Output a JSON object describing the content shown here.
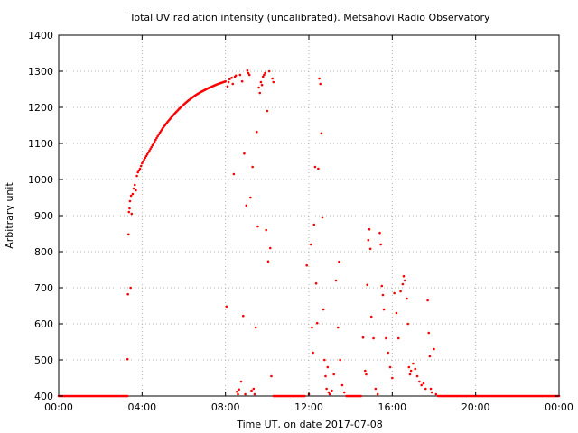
{
  "chart_data": {
    "type": "scatter",
    "title": "Total UV radiation intensity (uncalibrated). Metsähovi Radio Observatory",
    "xlabel": "Time UT, on date 2017-07-08",
    "ylabel": "Arbitrary unit",
    "xlim": [
      "00:00",
      "24:00"
    ],
    "ylim": [
      400,
      1400
    ],
    "grid": true,
    "marker_color": "#ff0000",
    "x_ticks": [
      "00:00",
      "04:00",
      "08:00",
      "12:00",
      "16:00",
      "20:00",
      "00:00"
    ],
    "y_ticks": [
      400,
      500,
      600,
      700,
      800,
      900,
      1000,
      1100,
      1200,
      1300,
      1400
    ],
    "series": [
      {
        "x_unit": "hours UT",
        "points": [
          [
            0.0,
            400
          ],
          [
            1.0,
            400
          ],
          [
            2.0,
            400
          ],
          [
            3.0,
            400
          ],
          [
            3.3,
            400
          ],
          [
            3.3,
            502
          ],
          [
            3.32,
            682
          ],
          [
            3.35,
            848
          ],
          [
            3.37,
            910
          ],
          [
            3.4,
            920
          ],
          [
            3.42,
            940
          ],
          [
            3.45,
            700
          ],
          [
            3.47,
            955
          ],
          [
            3.5,
            905
          ],
          [
            3.55,
            960
          ],
          [
            3.6,
            975
          ],
          [
            3.65,
            985
          ],
          [
            3.7,
            970
          ],
          [
            3.75,
            1010
          ],
          [
            3.8,
            1020
          ],
          [
            3.9,
            1030
          ],
          [
            4.0,
            1045
          ],
          [
            4.2,
            1065
          ],
          [
            4.4,
            1085
          ],
          [
            4.6,
            1105
          ],
          [
            4.8,
            1125
          ],
          [
            5.0,
            1143
          ],
          [
            5.2,
            1158
          ],
          [
            5.4,
            1172
          ],
          [
            5.6,
            1185
          ],
          [
            5.8,
            1197
          ],
          [
            6.0,
            1208
          ],
          [
            6.2,
            1218
          ],
          [
            6.4,
            1227
          ],
          [
            6.6,
            1235
          ],
          [
            6.8,
            1242
          ],
          [
            7.0,
            1248
          ],
          [
            7.2,
            1254
          ],
          [
            7.4,
            1259
          ],
          [
            7.6,
            1264
          ],
          [
            7.8,
            1268
          ],
          [
            8.0,
            1272
          ],
          [
            8.05,
            648
          ],
          [
            8.1,
            1258
          ],
          [
            8.15,
            1270
          ],
          [
            8.2,
            1278
          ],
          [
            8.3,
            1282
          ],
          [
            8.35,
            1265
          ],
          [
            8.4,
            1015
          ],
          [
            8.45,
            1285
          ],
          [
            8.5,
            1288
          ],
          [
            8.55,
            412
          ],
          [
            8.6,
            405
          ],
          [
            8.65,
            418
          ],
          [
            8.7,
            1290
          ],
          [
            8.75,
            440
          ],
          [
            8.8,
            1272
          ],
          [
            8.85,
            622
          ],
          [
            8.9,
            1072
          ],
          [
            8.95,
            405
          ],
          [
            9.0,
            928
          ],
          [
            9.05,
            1302
          ],
          [
            9.1,
            1295
          ],
          [
            9.15,
            1290
          ],
          [
            9.2,
            950
          ],
          [
            9.25,
            415
          ],
          [
            9.3,
            1035
          ],
          [
            9.35,
            420
          ],
          [
            9.4,
            405
          ],
          [
            9.45,
            590
          ],
          [
            9.5,
            1132
          ],
          [
            9.55,
            870
          ],
          [
            9.6,
            1255
          ],
          [
            9.65,
            1240
          ],
          [
            9.7,
            1270
          ],
          [
            9.75,
            1262
          ],
          [
            9.8,
            1285
          ],
          [
            9.85,
            1290
          ],
          [
            9.9,
            1295
          ],
          [
            9.95,
            860
          ],
          [
            10.0,
            1190
          ],
          [
            10.05,
            773
          ],
          [
            10.1,
            1300
          ],
          [
            10.15,
            810
          ],
          [
            10.2,
            455
          ],
          [
            10.25,
            1280
          ],
          [
            10.3,
            1270
          ],
          [
            10.3,
            400
          ],
          [
            11.0,
            400
          ],
          [
            11.8,
            400
          ],
          [
            11.9,
            762
          ],
          [
            12.0,
            405
          ],
          [
            12.1,
            820
          ],
          [
            12.15,
            590
          ],
          [
            12.2,
            520
          ],
          [
            12.25,
            875
          ],
          [
            12.3,
            1035
          ],
          [
            12.35,
            712
          ],
          [
            12.4,
            602
          ],
          [
            12.45,
            1030
          ],
          [
            12.5,
            1280
          ],
          [
            12.55,
            1265
          ],
          [
            12.6,
            1128
          ],
          [
            12.65,
            895
          ],
          [
            12.7,
            640
          ],
          [
            12.75,
            500
          ],
          [
            12.8,
            455
          ],
          [
            12.85,
            420
          ],
          [
            12.9,
            480
          ],
          [
            12.95,
            410
          ],
          [
            13.0,
            405
          ],
          [
            13.1,
            415
          ],
          [
            13.2,
            460
          ],
          [
            13.3,
            720
          ],
          [
            13.4,
            590
          ],
          [
            13.45,
            772
          ],
          [
            13.5,
            500
          ],
          [
            13.6,
            430
          ],
          [
            13.7,
            410
          ],
          [
            13.8,
            400
          ],
          [
            14.2,
            400
          ],
          [
            14.5,
            400
          ],
          [
            14.6,
            562
          ],
          [
            14.7,
            470
          ],
          [
            14.75,
            460
          ],
          [
            14.8,
            708
          ],
          [
            14.85,
            832
          ],
          [
            14.9,
            862
          ],
          [
            14.95,
            808
          ],
          [
            15.0,
            620
          ],
          [
            15.1,
            560
          ],
          [
            15.2,
            420
          ],
          [
            15.3,
            405
          ],
          [
            15.4,
            852
          ],
          [
            15.45,
            820
          ],
          [
            15.5,
            705
          ],
          [
            15.55,
            680
          ],
          [
            15.6,
            640
          ],
          [
            15.7,
            560
          ],
          [
            15.8,
            520
          ],
          [
            15.9,
            480
          ],
          [
            16.0,
            450
          ],
          [
            16.1,
            685
          ],
          [
            16.2,
            630
          ],
          [
            16.3,
            560
          ],
          [
            16.4,
            690
          ],
          [
            16.5,
            710
          ],
          [
            16.55,
            732
          ],
          [
            16.6,
            720
          ],
          [
            16.7,
            670
          ],
          [
            16.75,
            600
          ],
          [
            16.8,
            480
          ],
          [
            16.85,
            460
          ],
          [
            16.9,
            470
          ],
          [
            17.0,
            490
          ],
          [
            17.1,
            475
          ],
          [
            17.2,
            455
          ],
          [
            17.3,
            440
          ],
          [
            17.4,
            430
          ],
          [
            17.5,
            435
          ],
          [
            17.6,
            420
          ],
          [
            17.7,
            665
          ],
          [
            17.75,
            575
          ],
          [
            17.8,
            510
          ],
          [
            17.85,
            420
          ],
          [
            17.9,
            410
          ],
          [
            18.0,
            530
          ],
          [
            18.1,
            405
          ],
          [
            18.2,
            400
          ],
          [
            19.0,
            400
          ],
          [
            20.0,
            400
          ],
          [
            21.0,
            400
          ],
          [
            22.0,
            400
          ],
          [
            23.0,
            400
          ],
          [
            24.0,
            400
          ]
        ]
      }
    ]
  }
}
